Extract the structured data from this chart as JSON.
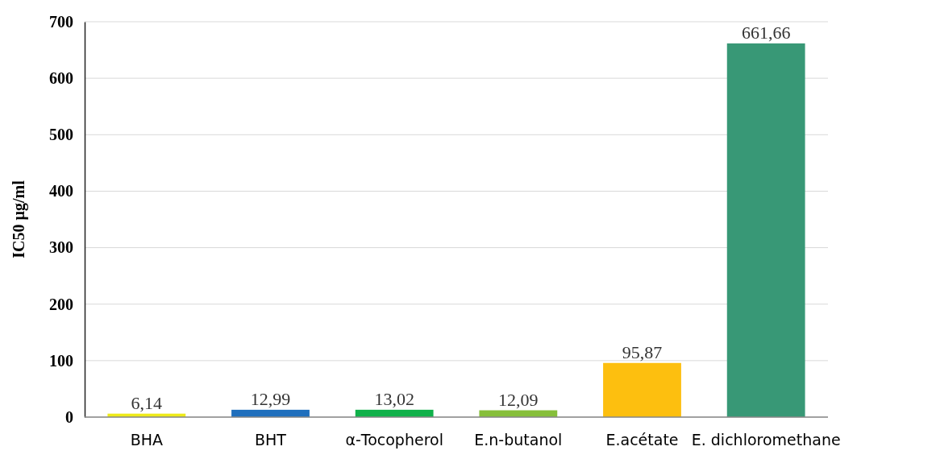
{
  "chart_data": {
    "type": "bar",
    "ylabel": "IC50 µg/ml",
    "categories": [
      "BHA",
      "BHT",
      "α-Tocopherol",
      "E.n-butanol",
      "E.acétate",
      "E. dichloromethane"
    ],
    "values": [
      6.14,
      12.99,
      13.02,
      12.09,
      95.87,
      661.66
    ],
    "colors": [
      "#eeea1a",
      "#1f6fbd",
      "#10b14a",
      "#86bf3a",
      "#fdbf0f",
      "#389876"
    ],
    "value_labels": [
      "6,14",
      "12,99",
      "13,02",
      "12,09",
      "95,87",
      "661,66"
    ],
    "ylim": [
      0,
      700
    ],
    "yticks": [
      0,
      100,
      200,
      300,
      400,
      500,
      600,
      700
    ],
    "grid": "y"
  }
}
